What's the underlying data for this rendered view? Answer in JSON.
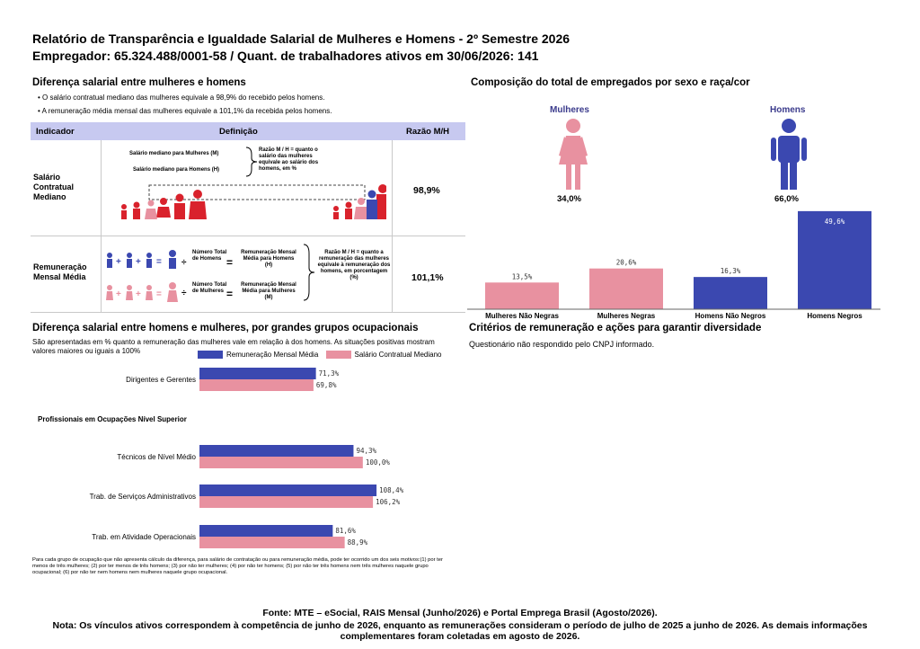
{
  "header": {
    "title": "Relatório de Transparência e Igualdade Salarial de Mulheres e Homens - 2º Semestre 2026",
    "subtitle": "Empregador: 65.324.488/0001-58 / Quant. de trabalhadores ativos em 30/06/2026: 141"
  },
  "salary_diff": {
    "title": "Diferença salarial entre mulheres e homens",
    "bullets": [
      "O salário contratual mediano das mulheres equivale a 98,9% do recebido pelos homens.",
      "A remuneração média mensal das mulheres equivale a 101,1% da recebida pelos homens."
    ],
    "table": {
      "col_indicator": "Indicador",
      "col_definition": "Definição",
      "col_ratio": "Razão M/H",
      "rows": [
        {
          "label": "Salário Contratual Mediano",
          "def_line1": "Salário mediano para Mulheres (M)",
          "def_line2": "Salário mediano para Homens (H)",
          "def_note": "Razão M / H = quanto o salário das mulheres equivale ao salário dos homens, em %",
          "ratio": "98,9%"
        },
        {
          "label": "Remuneração Mensal Média",
          "def_total_h": "Número Total de Homens",
          "def_total_m": "Número Total de Mulheres",
          "def_rem_h": "Remuneração Mensal Média para Homens (H)",
          "def_rem_m": "Remuneração Mensal Média para Mulheres (M)",
          "def_note": "Razão M / H = quanto a remuneração das mulheres equivale à remuneração dos homens, em porcentagem (%)",
          "ratio": "101,1%"
        }
      ]
    }
  },
  "composition": {
    "title": "Composição do total de empregados por sexo e raça/cor",
    "women_label": "Mulheres",
    "men_label": "Homens",
    "women_pct": "34,0%",
    "men_pct": "66,0%",
    "colors": {
      "women": "#e891a0",
      "men": "#3b48b0"
    }
  },
  "criteria": {
    "title": "Critérios de remuneração e ações para garantir diversidade",
    "text": "Questionário não respondido pelo CNPJ informado."
  },
  "groups": {
    "title": "Diferença salarial entre homens e mulheres, por grandes grupos ocupacionais",
    "description": "São apresentadas em % quanto a remuneração das mulheres vale em relação à dos homens. As situações positivas mostram valores maiores ou iguais a 100%",
    "empty_group": "Profissionais em Ocupações Nível Superior",
    "note": "Para cada grupo de ocupação que não apresenta cálculo da diferença, para salário de contratação ou para remuneração média, pode ter ocorrido um dos seis motivos:(1) por ter menos de três mulheres; (2) por ter menos de três homens; (3) por não ter mulheres; (4) por não ter homens; (5) por não ter três homens nem três mulheres naquele grupo ocupacional; (6) por não ter nem homens nem mulheres naquele grupo ocupacional."
  },
  "chart_data": [
    {
      "type": "bar",
      "title": "",
      "categories": [
        "Mulheres Não Negras",
        "Mulheres Negras",
        "Homens Não Negros",
        "Homens Negros"
      ],
      "values": [
        13.5,
        20.6,
        16.3,
        49.6
      ],
      "value_labels": [
        "13,5%",
        "20,6%",
        "16,3%",
        "49,6%"
      ],
      "colors": [
        "#e891a0",
        "#e891a0",
        "#3b48b0",
        "#3b48b0"
      ],
      "ylim": [
        0,
        50
      ]
    },
    {
      "type": "bar",
      "orientation": "horizontal",
      "categories": [
        "Dirigentes e Gerentes",
        "Técnicos de Nível Médio",
        "Trab. de Serviços Administrativos",
        "Trab. em Atividade Operacionais"
      ],
      "series": [
        {
          "name": "Remuneração Mensal Média",
          "color": "#3b48b0",
          "values": [
            71.3,
            94.3,
            108.4,
            81.6
          ],
          "labels": [
            "71,3%",
            "94,3%",
            "108,4%",
            "81,6%"
          ]
        },
        {
          "name": "Salário Contratual Mediano",
          "color": "#e891a0",
          "values": [
            69.8,
            100.0,
            106.2,
            88.9
          ],
          "labels": [
            "69,8%",
            "100,0%",
            "106,2%",
            "88,9%"
          ]
        }
      ],
      "legend": "top"
    }
  ],
  "footer": {
    "source": "Fonte: MTE – eSocial, RAIS Mensal (Junho/2026) e Portal Emprega Brasil (Agosto/2026).",
    "note": "Nota: Os vínculos ativos correspondem à competência de junho de 2026, enquanto as remunerações consideram o período de julho de 2025 a junho de 2026. As demais informações complementares foram coletadas em agosto de 2026."
  }
}
